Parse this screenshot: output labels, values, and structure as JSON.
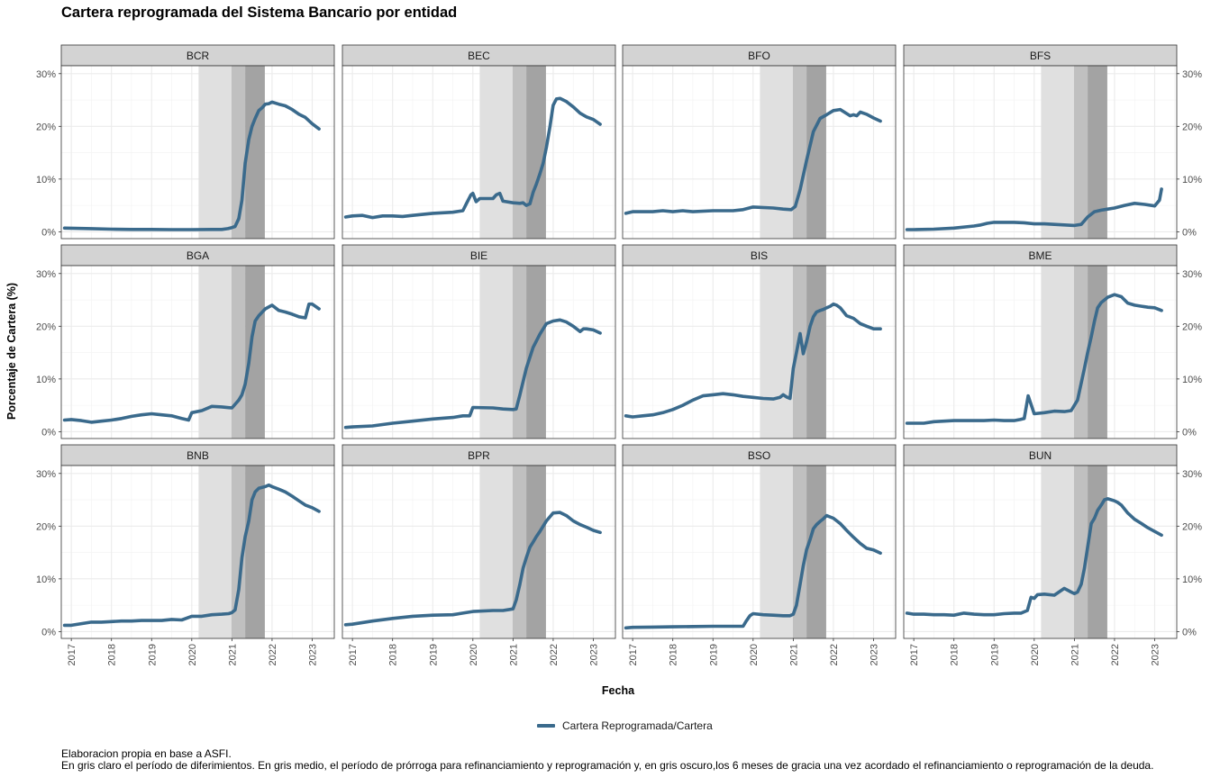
{
  "title": "Cartera reprogramada del Sistema Bancario por entidad",
  "legend": {
    "label": "Cartera Reprogramada/Cartera",
    "color": "#3a6a8c"
  },
  "caption": {
    "line1": "Elaboracion propia en base a ASFI.",
    "line2": "En gris claro el período de diferimientos. En gris medio, el período de prórroga para refinanciamiento y reprogramación y, en gris oscuro,los 6 meses de gracia una vez acordado el refinanciamiento o reprogramación de la deuda."
  },
  "chart_data": {
    "type": "line",
    "xlabel": "Fecha",
    "ylabel": "Porcentaje de Cartera (%)",
    "xlim": [
      2016.75,
      2023.55
    ],
    "ylim": [
      -1.3,
      31.5
    ],
    "xticks": [
      2017,
      2018,
      2019,
      2020,
      2021,
      2022,
      2023
    ],
    "yticks": [
      0,
      10,
      20,
      30
    ],
    "ytick_labels": [
      "0%",
      "10%",
      "20%",
      "30%"
    ],
    "grid": true,
    "legend_position": "bottom",
    "shaded_periods": [
      {
        "start": 2020.17,
        "end": 2020.99,
        "shade": "light",
        "color": "#e0e0e0"
      },
      {
        "start": 2020.99,
        "end": 2021.33,
        "shade": "medium",
        "color": "#c0c0c0"
      },
      {
        "start": 2021.33,
        "end": 2021.82,
        "shade": "dark",
        "color": "#a3a3a3"
      }
    ],
    "series_color": "#3a6a8c",
    "panels": [
      {
        "name": "BCR",
        "x": [
          2016.83,
          2017.5,
          2018,
          2018.5,
          2019,
          2019.5,
          2020,
          2020.5,
          2020.75,
          2020.9,
          2021,
          2021.08,
          2021.17,
          2021.25,
          2021.33,
          2021.42,
          2021.5,
          2021.58,
          2021.67,
          2021.75,
          2021.83,
          2021.92,
          2022,
          2022.17,
          2022.33,
          2022.5,
          2022.67,
          2022.83,
          2023,
          2023.17
        ],
        "y": [
          0.7,
          0.6,
          0.5,
          0.45,
          0.45,
          0.4,
          0.4,
          0.45,
          0.45,
          0.6,
          0.8,
          1.0,
          2.5,
          6,
          13,
          17.5,
          20,
          21.5,
          23,
          23.5,
          24.2,
          24.3,
          24.6,
          24.2,
          23.9,
          23.2,
          22.3,
          21.7,
          20.5,
          19.5
        ]
      },
      {
        "name": "BEC",
        "x": [
          2016.83,
          2017,
          2017.25,
          2017.5,
          2017.75,
          2018,
          2018.25,
          2018.5,
          2018.75,
          2019,
          2019.25,
          2019.5,
          2019.75,
          2019.85,
          2019.95,
          2020,
          2020.08,
          2020.17,
          2020.5,
          2020.58,
          2020.67,
          2020.75,
          2021,
          2021.17,
          2021.25,
          2021.33,
          2021.42,
          2021.5,
          2021.58,
          2021.67,
          2021.75,
          2021.83,
          2021.92,
          2022,
          2022.08,
          2022.17,
          2022.33,
          2022.5,
          2022.67,
          2022.83,
          2023,
          2023.17
        ],
        "y": [
          2.8,
          3.0,
          3.1,
          2.7,
          3.0,
          3.0,
          2.9,
          3.1,
          3.3,
          3.5,
          3.6,
          3.7,
          4.0,
          5.5,
          7,
          7.3,
          5.7,
          6.3,
          6.3,
          7,
          7.3,
          5.8,
          5.5,
          5.4,
          5.5,
          5,
          5.3,
          7.5,
          9,
          11,
          13,
          16,
          20,
          24,
          25.2,
          25.3,
          24.7,
          23.7,
          22.5,
          21.8,
          21.3,
          20.4
        ]
      },
      {
        "name": "BFO",
        "x": [
          2016.83,
          2017,
          2017.5,
          2017.75,
          2018,
          2018.25,
          2018.5,
          2019,
          2019.5,
          2019.75,
          2020,
          2020.5,
          2020.75,
          2020.95,
          2021.05,
          2021.17,
          2021.33,
          2021.5,
          2021.67,
          2021.83,
          2022,
          2022.17,
          2022.25,
          2022.42,
          2022.5,
          2022.58,
          2022.67,
          2022.83,
          2023,
          2023.17
        ],
        "y": [
          3.5,
          3.8,
          3.8,
          4.0,
          3.8,
          4.0,
          3.8,
          4.0,
          4.0,
          4.2,
          4.7,
          4.5,
          4.3,
          4.2,
          4.8,
          8,
          13.5,
          19,
          21.5,
          22.2,
          23,
          23.2,
          22.8,
          22,
          22.2,
          22,
          22.7,
          22.3,
          21.6,
          21
        ]
      },
      {
        "name": "BFS",
        "x": [
          2016.83,
          2017,
          2017.5,
          2018,
          2018.5,
          2018.67,
          2018.83,
          2019,
          2019.25,
          2019.5,
          2019.75,
          2020,
          2020.25,
          2020.5,
          2020.75,
          2021,
          2021.17,
          2021.33,
          2021.5,
          2021.67,
          2021.83,
          2022,
          2022.25,
          2022.5,
          2022.75,
          2023,
          2023.12,
          2023.17
        ],
        "y": [
          0.4,
          0.4,
          0.5,
          0.7,
          1.1,
          1.3,
          1.6,
          1.8,
          1.8,
          1.8,
          1.7,
          1.5,
          1.5,
          1.4,
          1.3,
          1.2,
          1.4,
          2.8,
          3.8,
          4.1,
          4.3,
          4.5,
          5.0,
          5.4,
          5.2,
          4.9,
          6,
          8.1
        ]
      },
      {
        "name": "BGA",
        "x": [
          2016.83,
          2017,
          2017.25,
          2017.5,
          2017.75,
          2018,
          2018.25,
          2018.5,
          2018.75,
          2019,
          2019.25,
          2019.5,
          2019.75,
          2019.92,
          2020,
          2020.25,
          2020.5,
          2020.75,
          2021,
          2021.08,
          2021.17,
          2021.25,
          2021.33,
          2021.42,
          2021.5,
          2021.58,
          2021.67,
          2021.83,
          2022,
          2022.17,
          2022.33,
          2022.5,
          2022.67,
          2022.83,
          2022.92,
          2023,
          2023.17
        ],
        "y": [
          2.2,
          2.3,
          2.1,
          1.8,
          2,
          2.2,
          2.5,
          2.9,
          3.2,
          3.4,
          3.2,
          3,
          2.5,
          2.2,
          3.6,
          4.0,
          4.8,
          4.7,
          4.5,
          5.2,
          6,
          7,
          9,
          13,
          18,
          21,
          22,
          23.3,
          24,
          23,
          22.7,
          22.3,
          21.8,
          21.6,
          24.2,
          24.2,
          23.3
        ]
      },
      {
        "name": "BIE",
        "x": [
          2016.83,
          2017,
          2017.5,
          2018,
          2018.5,
          2019,
          2019.5,
          2019.75,
          2019.92,
          2020,
          2020.5,
          2020.75,
          2021,
          2021.08,
          2021.17,
          2021.33,
          2021.5,
          2021.67,
          2021.83,
          2022,
          2022.17,
          2022.33,
          2022.5,
          2022.67,
          2022.75,
          2022.83,
          2023,
          2023.17
        ],
        "y": [
          0.8,
          0.9,
          1.1,
          1.6,
          2.0,
          2.4,
          2.7,
          3.0,
          3.0,
          4.6,
          4.5,
          4.3,
          4.2,
          4.3,
          7,
          12,
          16,
          18.5,
          20.5,
          21,
          21.2,
          20.8,
          20,
          19,
          19.5,
          19.5,
          19.3,
          18.7
        ]
      },
      {
        "name": "BIS",
        "x": [
          2016.83,
          2017,
          2017.25,
          2017.5,
          2017.75,
          2018,
          2018.25,
          2018.5,
          2018.75,
          2019,
          2019.25,
          2019.5,
          2019.75,
          2020,
          2020.25,
          2020.5,
          2020.67,
          2020.75,
          2020.83,
          2020.92,
          2021,
          2021.08,
          2021.17,
          2021.25,
          2021.33,
          2021.42,
          2021.5,
          2021.58,
          2021.67,
          2021.75,
          2021.83,
          2021.92,
          2022,
          2022.08,
          2022.17,
          2022.33,
          2022.5,
          2022.67,
          2022.83,
          2023,
          2023.17
        ],
        "y": [
          3.0,
          2.8,
          3,
          3.2,
          3.6,
          4.2,
          5,
          6,
          6.8,
          7,
          7.2,
          7.0,
          6.7,
          6.5,
          6.3,
          6.2,
          6.5,
          7,
          6.6,
          6.3,
          12,
          15,
          18.6,
          14.8,
          17,
          20,
          21.8,
          22.7,
          23,
          23.2,
          23.5,
          23.8,
          24.2,
          24,
          23.5,
          22,
          21.5,
          20.5,
          20,
          19.5,
          19.5
        ]
      },
      {
        "name": "BME",
        "x": [
          2016.83,
          2017,
          2017.25,
          2017.5,
          2017.75,
          2018,
          2018.25,
          2018.5,
          2018.75,
          2019,
          2019.25,
          2019.5,
          2019.65,
          2019.75,
          2019.85,
          2020,
          2020.25,
          2020.5,
          2020.75,
          2020.92,
          2021.08,
          2021.25,
          2021.33,
          2021.42,
          2021.5,
          2021.58,
          2021.67,
          2021.83,
          2022,
          2022.17,
          2022.33,
          2022.5,
          2022.67,
          2022.83,
          2023,
          2023.17
        ],
        "y": [
          1.6,
          1.6,
          1.6,
          1.9,
          2.0,
          2.1,
          2.1,
          2.1,
          2.1,
          2.2,
          2.1,
          2.1,
          2.3,
          2.5,
          6.8,
          3.4,
          3.6,
          3.9,
          3.8,
          4.0,
          6,
          12,
          15,
          18,
          21,
          23.5,
          24.5,
          25.5,
          26,
          25.6,
          24.4,
          24,
          23.8,
          23.6,
          23.5,
          23
        ]
      },
      {
        "name": "BNB",
        "x": [
          2016.83,
          2017,
          2017.25,
          2017.5,
          2017.75,
          2018,
          2018.25,
          2018.5,
          2018.75,
          2019,
          2019.25,
          2019.5,
          2019.75,
          2020,
          2020.25,
          2020.5,
          2020.75,
          2020.92,
          2021,
          2021.08,
          2021.17,
          2021.25,
          2021.33,
          2021.42,
          2021.5,
          2021.58,
          2021.67,
          2021.83,
          2021.92,
          2022,
          2022.17,
          2022.33,
          2022.5,
          2022.67,
          2022.83,
          2023,
          2023.17
        ],
        "y": [
          1.2,
          1.2,
          1.5,
          1.8,
          1.8,
          1.9,
          2.0,
          2.0,
          2.1,
          2.1,
          2.1,
          2.3,
          2.2,
          2.9,
          2.9,
          3.2,
          3.3,
          3.4,
          3.6,
          4.1,
          8,
          14,
          18,
          21,
          25,
          26.5,
          27.2,
          27.5,
          27.8,
          27.5,
          27,
          26.5,
          25.7,
          24.8,
          24,
          23.5,
          22.8
        ]
      },
      {
        "name": "BPR",
        "x": [
          2016.83,
          2017,
          2017.5,
          2018,
          2018.5,
          2019,
          2019.5,
          2019.75,
          2020,
          2020.5,
          2020.75,
          2020.92,
          2021,
          2021.08,
          2021.17,
          2021.25,
          2021.33,
          2021.42,
          2021.5,
          2021.58,
          2021.67,
          2021.83,
          2022,
          2022.17,
          2022.33,
          2022.5,
          2022.67,
          2022.83,
          2023,
          2023.17
        ],
        "y": [
          1.3,
          1.4,
          2.0,
          2.5,
          2.9,
          3.1,
          3.2,
          3.5,
          3.8,
          4,
          4.0,
          4.2,
          4.3,
          6,
          9,
          12,
          14,
          16,
          17,
          18,
          19,
          21,
          22.5,
          22.6,
          22,
          21,
          20.3,
          19.8,
          19.2,
          18.8
        ]
      },
      {
        "name": "BSO",
        "x": [
          2016.83,
          2017,
          2017.5,
          2018,
          2018.5,
          2019,
          2019.5,
          2019.67,
          2019.75,
          2019.83,
          2019.92,
          2020,
          2020.25,
          2020.5,
          2020.75,
          2020.92,
          2021,
          2021.08,
          2021.17,
          2021.25,
          2021.33,
          2021.42,
          2021.5,
          2021.58,
          2021.67,
          2021.75,
          2021.83,
          2022,
          2022.17,
          2022.33,
          2022.5,
          2022.67,
          2022.83,
          2023,
          2023.17
        ],
        "y": [
          0.7,
          0.8,
          0.85,
          0.9,
          0.95,
          1.0,
          1.0,
          1.0,
          1.0,
          2,
          3,
          3.4,
          3.2,
          3.1,
          3.0,
          3.0,
          3.3,
          5,
          9,
          12.5,
          15.5,
          17.5,
          19.5,
          20.3,
          20.9,
          21.4,
          22,
          21.5,
          20.5,
          19.2,
          17.9,
          16.7,
          15.8,
          15.5,
          14.9
        ]
      },
      {
        "name": "BUN",
        "x": [
          2016.83,
          2017,
          2017.25,
          2017.5,
          2017.75,
          2018,
          2018.25,
          2018.5,
          2018.75,
          2019,
          2019.25,
          2019.5,
          2019.67,
          2019.83,
          2019.92,
          2020,
          2020.08,
          2020.25,
          2020.5,
          2020.75,
          2020.92,
          2021,
          2021.08,
          2021.17,
          2021.25,
          2021.33,
          2021.42,
          2021.5,
          2021.58,
          2021.67,
          2021.75,
          2021.83,
          2022,
          2022.08,
          2022.17,
          2022.33,
          2022.5,
          2022.67,
          2022.83,
          2023,
          2023.17
        ],
        "y": [
          3.5,
          3.3,
          3.3,
          3.2,
          3.2,
          3.1,
          3.5,
          3.3,
          3.2,
          3.2,
          3.4,
          3.5,
          3.5,
          4,
          6.5,
          6.3,
          7.0,
          7.1,
          6.9,
          8.2,
          7.5,
          7.2,
          7.5,
          9,
          12,
          16,
          20.5,
          21.5,
          23,
          24,
          25,
          25.2,
          24.8,
          24.5,
          24,
          22.5,
          21.3,
          20.5,
          19.7,
          19,
          18.3
        ]
      }
    ]
  }
}
